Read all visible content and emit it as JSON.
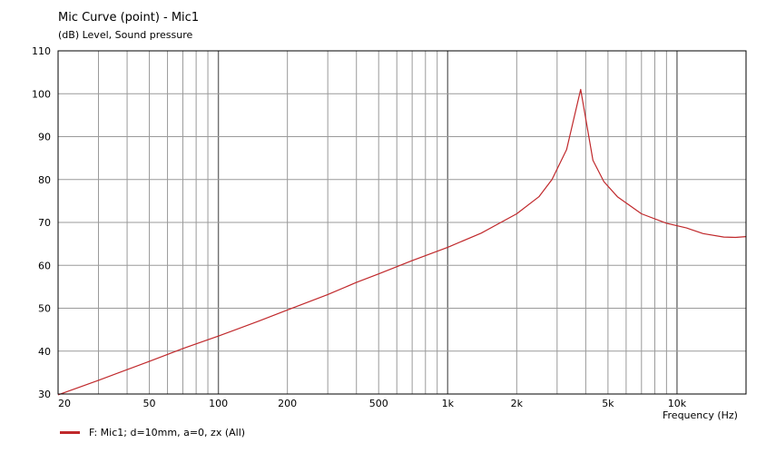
{
  "chart_data": {
    "type": "line",
    "title": "Mic Curve (point) - Mic1",
    "ylabel": "(dB)  Level, Sound pressure",
    "xlabel": "Frequency  (Hz)",
    "x_scale": "log",
    "xlim": [
      20,
      20000
    ],
    "ylim": [
      30,
      110
    ],
    "yticks": [
      30,
      40,
      50,
      60,
      70,
      80,
      90,
      100,
      110
    ],
    "xticks": [
      {
        "value": 20,
        "label": "20"
      },
      {
        "value": 50,
        "label": "50"
      },
      {
        "value": 100,
        "label": "100"
      },
      {
        "value": 200,
        "label": "200"
      },
      {
        "value": 500,
        "label": "500"
      },
      {
        "value": 1000,
        "label": "1k"
      },
      {
        "value": 2000,
        "label": "2k"
      },
      {
        "value": 5000,
        "label": "5k"
      },
      {
        "value": 10000,
        "label": "10k"
      }
    ],
    "grid": true,
    "legend_position": "bottom-left",
    "series": [
      {
        "name": "F: Mic1; d=10mm, a=0, zx  (All)",
        "color": "#c0282b",
        "points": [
          [
            20,
            29.8
          ],
          [
            30,
            33.2
          ],
          [
            50,
            37.6
          ],
          [
            70,
            40.6
          ],
          [
            100,
            43.5
          ],
          [
            150,
            47.0
          ],
          [
            200,
            49.6
          ],
          [
            300,
            53.2
          ],
          [
            400,
            56.0
          ],
          [
            500,
            58.0
          ],
          [
            700,
            61.1
          ],
          [
            1000,
            64.2
          ],
          [
            1400,
            67.5
          ],
          [
            2000,
            72.0
          ],
          [
            2500,
            76.0
          ],
          [
            2850,
            80.0
          ],
          [
            3300,
            87.0
          ],
          [
            3800,
            101.0
          ],
          [
            4300,
            84.5
          ],
          [
            4800,
            79.5
          ],
          [
            5500,
            76.0
          ],
          [
            7000,
            72.0
          ],
          [
            9000,
            69.8
          ],
          [
            11000,
            68.7
          ],
          [
            13000,
            67.4
          ],
          [
            16000,
            66.6
          ],
          [
            18000,
            66.5
          ],
          [
            20000,
            66.7
          ]
        ]
      }
    ]
  }
}
